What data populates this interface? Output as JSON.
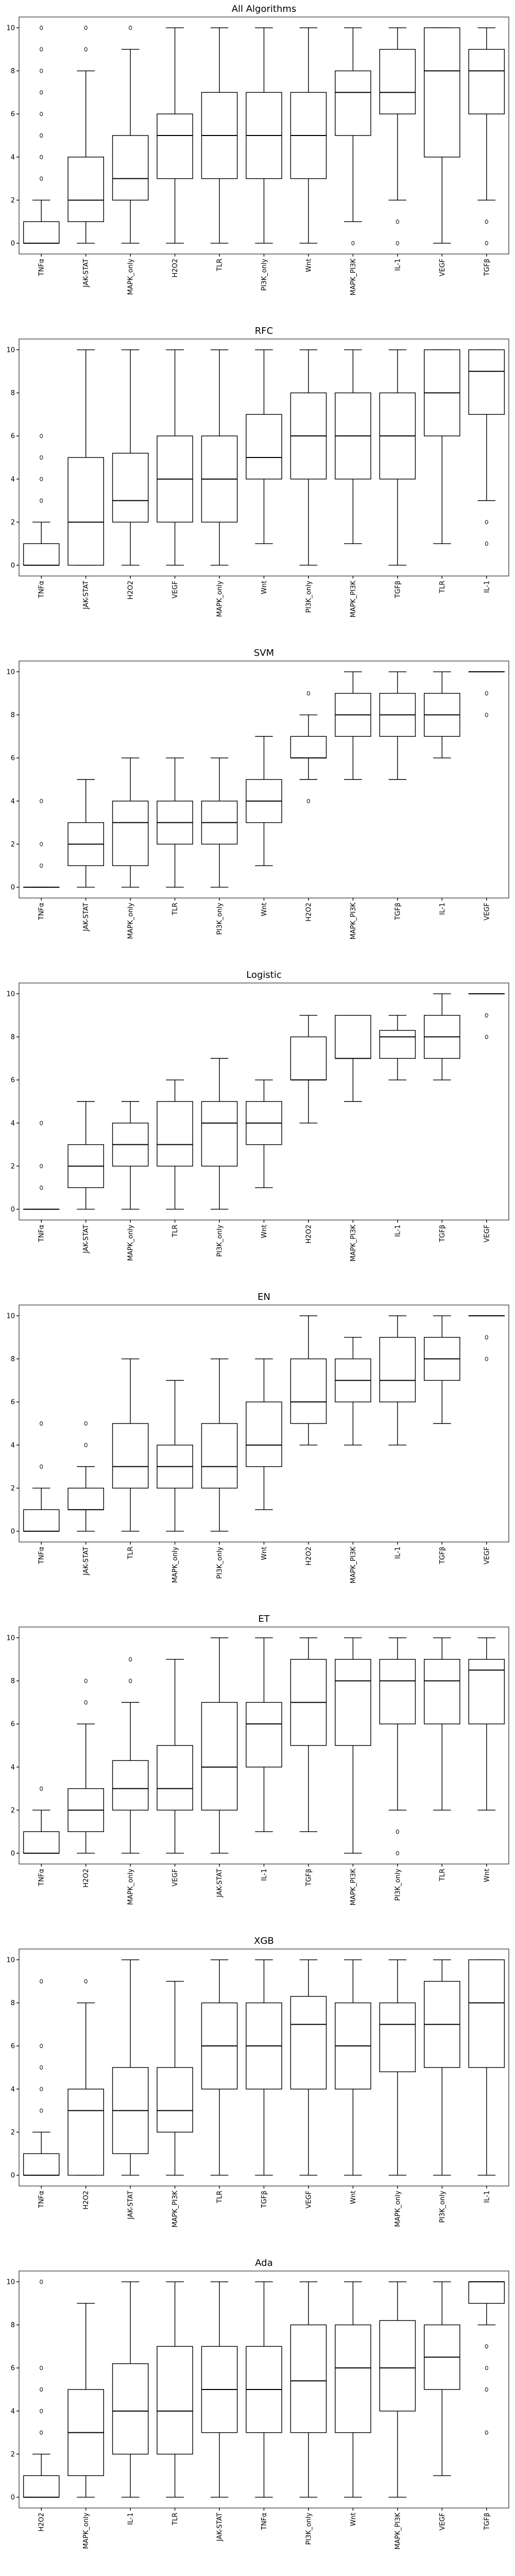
{
  "chart_data": [
    {
      "type": "box",
      "title": "All Algorithms",
      "ylim": [
        -0.5,
        10.5
      ],
      "yticks": [
        0,
        2,
        4,
        6,
        8,
        10
      ],
      "categories": [
        "TNFα",
        "JAK-STAT",
        "MAPK_only",
        "H2O2",
        "TLR",
        "PI3K_only",
        "Wnt",
        "MAPK_PI3K",
        "IL-1",
        "VEGF",
        "TGFβ"
      ],
      "boxes": [
        {
          "q1": 0,
          "median": 0,
          "q3": 1,
          "lo": 0,
          "hi": 2,
          "fliers": [
            3,
            4,
            5,
            6,
            7,
            8,
            9,
            10
          ]
        },
        {
          "q1": 1,
          "median": 2,
          "q3": 4,
          "lo": 0,
          "hi": 8,
          "fliers": [
            9,
            10
          ]
        },
        {
          "q1": 2,
          "median": 3,
          "q3": 5,
          "lo": 0,
          "hi": 9,
          "fliers": [
            10
          ]
        },
        {
          "q1": 3,
          "median": 5,
          "q3": 6,
          "lo": 0,
          "hi": 10,
          "fliers": []
        },
        {
          "q1": 3,
          "median": 5,
          "q3": 7,
          "lo": 0,
          "hi": 10,
          "fliers": []
        },
        {
          "q1": 3,
          "median": 5,
          "q3": 7,
          "lo": 0,
          "hi": 10,
          "fliers": []
        },
        {
          "q1": 3,
          "median": 5,
          "q3": 7,
          "lo": 0,
          "hi": 10,
          "fliers": []
        },
        {
          "q1": 5,
          "median": 7,
          "q3": 8,
          "lo": 1,
          "hi": 10,
          "fliers": [
            0
          ]
        },
        {
          "q1": 6,
          "median": 7,
          "q3": 9,
          "lo": 2,
          "hi": 10,
          "fliers": [
            0,
            1
          ]
        },
        {
          "q1": 4,
          "median": 8,
          "q3": 10,
          "lo": 0,
          "hi": 10,
          "fliers": []
        },
        {
          "q1": 6,
          "median": 8,
          "q3": 9,
          "lo": 2,
          "hi": 10,
          "fliers": [
            0,
            1
          ]
        }
      ]
    },
    {
      "type": "box",
      "title": "RFC",
      "ylim": [
        -0.5,
        10.5
      ],
      "yticks": [
        0,
        2,
        4,
        6,
        8,
        10
      ],
      "categories": [
        "TNFα",
        "JAK-STAT",
        "H2O2",
        "VEGF",
        "MAPK_only",
        "Wnt",
        "PI3K_only",
        "MAPK_PI3K",
        "TGFβ",
        "TLR",
        "IL-1"
      ],
      "boxes": [
        {
          "q1": 0,
          "median": 0,
          "q3": 1,
          "lo": 0,
          "hi": 2,
          "fliers": [
            3,
            4,
            5,
            6
          ]
        },
        {
          "q1": 0,
          "median": 2,
          "q3": 5,
          "lo": 0,
          "hi": 10,
          "fliers": []
        },
        {
          "q1": 2,
          "median": 3,
          "q3": 5.2,
          "lo": 0,
          "hi": 10,
          "fliers": []
        },
        {
          "q1": 2,
          "median": 4,
          "q3": 6,
          "lo": 0,
          "hi": 10,
          "fliers": []
        },
        {
          "q1": 2,
          "median": 4,
          "q3": 6,
          "lo": 0,
          "hi": 10,
          "fliers": []
        },
        {
          "q1": 4,
          "median": 5,
          "q3": 7,
          "lo": 1,
          "hi": 10,
          "fliers": []
        },
        {
          "q1": 4,
          "median": 6,
          "q3": 8,
          "lo": 0,
          "hi": 10,
          "fliers": []
        },
        {
          "q1": 4,
          "median": 6,
          "q3": 8,
          "lo": 1,
          "hi": 10,
          "fliers": []
        },
        {
          "q1": 4,
          "median": 6,
          "q3": 8,
          "lo": 0,
          "hi": 10,
          "fliers": []
        },
        {
          "q1": 6,
          "median": 8,
          "q3": 10,
          "lo": 1,
          "hi": 10,
          "fliers": []
        },
        {
          "q1": 7,
          "median": 9,
          "q3": 10,
          "lo": 3,
          "hi": 10,
          "fliers": [
            1,
            2
          ]
        }
      ]
    },
    {
      "type": "box",
      "title": "SVM",
      "ylim": [
        -0.5,
        10.5
      ],
      "yticks": [
        0,
        2,
        4,
        6,
        8,
        10
      ],
      "categories": [
        "TNFα",
        "JAK-STAT",
        "MAPK_only",
        "TLR",
        "PI3K_only",
        "Wnt",
        "H2O2",
        "MAPK_PI3K",
        "TGFβ",
        "IL-1",
        "VEGF"
      ],
      "boxes": [
        {
          "q1": 0,
          "median": 0,
          "q3": 0,
          "lo": 0,
          "hi": 0,
          "fliers": [
            1,
            2,
            4
          ]
        },
        {
          "q1": 1,
          "median": 2,
          "q3": 3,
          "lo": 0,
          "hi": 5,
          "fliers": []
        },
        {
          "q1": 1,
          "median": 3,
          "q3": 4,
          "lo": 0,
          "hi": 6,
          "fliers": []
        },
        {
          "q1": 2,
          "median": 3,
          "q3": 4,
          "lo": 0,
          "hi": 6,
          "fliers": []
        },
        {
          "q1": 2,
          "median": 3,
          "q3": 4,
          "lo": 0,
          "hi": 6,
          "fliers": []
        },
        {
          "q1": 3,
          "median": 4,
          "q3": 5,
          "lo": 1,
          "hi": 7,
          "fliers": []
        },
        {
          "q1": 6,
          "median": 6,
          "q3": 7,
          "lo": 5,
          "hi": 8,
          "fliers": [
            4,
            9
          ]
        },
        {
          "q1": 7,
          "median": 8,
          "q3": 9,
          "lo": 5,
          "hi": 10,
          "fliers": []
        },
        {
          "q1": 7,
          "median": 8,
          "q3": 9,
          "lo": 5,
          "hi": 10,
          "fliers": []
        },
        {
          "q1": 7,
          "median": 8,
          "q3": 9,
          "lo": 6,
          "hi": 10,
          "fliers": []
        },
        {
          "q1": 10,
          "median": 10,
          "q3": 10,
          "lo": 10,
          "hi": 10,
          "fliers": [
            8,
            9
          ]
        }
      ]
    },
    {
      "type": "box",
      "title": "Logistic",
      "ylim": [
        -0.5,
        10.5
      ],
      "yticks": [
        0,
        2,
        4,
        6,
        8,
        10
      ],
      "categories": [
        "TNFα",
        "JAK-STAT",
        "MAPK_only",
        "TLR",
        "PI3K_only",
        "Wnt",
        "H2O2",
        "MAPK_PI3K",
        "IL-1",
        "TGFβ",
        "VEGF"
      ],
      "boxes": [
        {
          "q1": 0,
          "median": 0,
          "q3": 0,
          "lo": 0,
          "hi": 0,
          "fliers": [
            1,
            2,
            4
          ]
        },
        {
          "q1": 1,
          "median": 2,
          "q3": 3,
          "lo": 0,
          "hi": 5,
          "fliers": []
        },
        {
          "q1": 2,
          "median": 3,
          "q3": 4,
          "lo": 0,
          "hi": 5,
          "fliers": []
        },
        {
          "q1": 2,
          "median": 3,
          "q3": 5,
          "lo": 0,
          "hi": 6,
          "fliers": []
        },
        {
          "q1": 2,
          "median": 4,
          "q3": 5,
          "lo": 0,
          "hi": 7,
          "fliers": []
        },
        {
          "q1": 3,
          "median": 4,
          "q3": 5,
          "lo": 1,
          "hi": 6,
          "fliers": []
        },
        {
          "q1": 6,
          "median": 6,
          "q3": 8,
          "lo": 4,
          "hi": 9,
          "fliers": []
        },
        {
          "q1": 7,
          "median": 7,
          "q3": 9,
          "lo": 5,
          "hi": 9,
          "fliers": []
        },
        {
          "q1": 7,
          "median": 8,
          "q3": 8.3,
          "lo": 6,
          "hi": 9,
          "fliers": []
        },
        {
          "q1": 7,
          "median": 8,
          "q3": 9,
          "lo": 6,
          "hi": 10,
          "fliers": []
        },
        {
          "q1": 10,
          "median": 10,
          "q3": 10,
          "lo": 10,
          "hi": 10,
          "fliers": [
            8,
            9
          ]
        }
      ]
    },
    {
      "type": "box",
      "title": "EN",
      "ylim": [
        -0.5,
        10.5
      ],
      "yticks": [
        0,
        2,
        4,
        6,
        8,
        10
      ],
      "categories": [
        "TNFα",
        "JAK-STAT",
        "TLR",
        "MAPK_only",
        "PI3K_only",
        "Wnt",
        "H2O2",
        "MAPK_PI3K",
        "IL-1",
        "TGFβ",
        "VEGF"
      ],
      "boxes": [
        {
          "q1": 0,
          "median": 0,
          "q3": 1,
          "lo": 0,
          "hi": 2,
          "fliers": [
            3,
            5
          ]
        },
        {
          "q1": 1,
          "median": 1,
          "q3": 2,
          "lo": 0,
          "hi": 3,
          "fliers": [
            4,
            5
          ]
        },
        {
          "q1": 2,
          "median": 3,
          "q3": 5,
          "lo": 0,
          "hi": 8,
          "fliers": []
        },
        {
          "q1": 2,
          "median": 3,
          "q3": 4,
          "lo": 0,
          "hi": 7,
          "fliers": []
        },
        {
          "q1": 2,
          "median": 3,
          "q3": 5,
          "lo": 0,
          "hi": 8,
          "fliers": []
        },
        {
          "q1": 3,
          "median": 4,
          "q3": 6,
          "lo": 1,
          "hi": 8,
          "fliers": []
        },
        {
          "q1": 5,
          "median": 6,
          "q3": 8,
          "lo": 4,
          "hi": 10,
          "fliers": []
        },
        {
          "q1": 6,
          "median": 7,
          "q3": 8,
          "lo": 4,
          "hi": 9,
          "fliers": []
        },
        {
          "q1": 6,
          "median": 7,
          "q3": 9,
          "lo": 4,
          "hi": 10,
          "fliers": []
        },
        {
          "q1": 7,
          "median": 8,
          "q3": 9,
          "lo": 5,
          "hi": 10,
          "fliers": []
        },
        {
          "q1": 10,
          "median": 10,
          "q3": 10,
          "lo": 10,
          "hi": 10,
          "fliers": [
            8,
            9
          ]
        }
      ]
    },
    {
      "type": "box",
      "title": "ET",
      "ylim": [
        -0.5,
        10.5
      ],
      "yticks": [
        0,
        2,
        4,
        6,
        8,
        10
      ],
      "categories": [
        "TNFα",
        "H2O2",
        "MAPK_only",
        "VEGF",
        "JAK-STAT",
        "IL-1",
        "TGFβ",
        "MAPK_PI3K",
        "PI3K_only",
        "TLR",
        "Wnt"
      ],
      "boxes": [
        {
          "q1": 0,
          "median": 0,
          "q3": 1,
          "lo": 0,
          "hi": 2,
          "fliers": [
            3
          ]
        },
        {
          "q1": 1,
          "median": 2,
          "q3": 3,
          "lo": 0,
          "hi": 6,
          "fliers": [
            7,
            8
          ]
        },
        {
          "q1": 2,
          "median": 3,
          "q3": 4.3,
          "lo": 0,
          "hi": 7,
          "fliers": [
            8,
            9
          ]
        },
        {
          "q1": 2,
          "median": 3,
          "q3": 5,
          "lo": 0,
          "hi": 9,
          "fliers": []
        },
        {
          "q1": 2,
          "median": 4,
          "q3": 7,
          "lo": 0,
          "hi": 10,
          "fliers": []
        },
        {
          "q1": 4,
          "median": 6,
          "q3": 7,
          "lo": 1,
          "hi": 10,
          "fliers": []
        },
        {
          "q1": 5,
          "median": 7,
          "q3": 9,
          "lo": 1,
          "hi": 10,
          "fliers": []
        },
        {
          "q1": 5,
          "median": 8,
          "q3": 9,
          "lo": 0,
          "hi": 10,
          "fliers": []
        },
        {
          "q1": 6,
          "median": 8,
          "q3": 9,
          "lo": 2,
          "hi": 10,
          "fliers": [
            0,
            1
          ]
        },
        {
          "q1": 6,
          "median": 8,
          "q3": 9,
          "lo": 2,
          "hi": 10,
          "fliers": []
        },
        {
          "q1": 6,
          "median": 8.5,
          "q3": 9,
          "lo": 2,
          "hi": 10,
          "fliers": []
        }
      ]
    },
    {
      "type": "box",
      "title": "XGB",
      "ylim": [
        -0.5,
        10.5
      ],
      "yticks": [
        0,
        2,
        4,
        6,
        8,
        10
      ],
      "categories": [
        "TNFα",
        "H2O2",
        "JAK-STAT",
        "MAPK_PI3K",
        "TLR",
        "TGFβ",
        "VEGF",
        "Wnt",
        "MAPK_only",
        "PI3K_only",
        "IL-1"
      ],
      "boxes": [
        {
          "q1": 0,
          "median": 0,
          "q3": 1,
          "lo": 0,
          "hi": 2,
          "fliers": [
            3,
            4,
            5,
            6,
            9
          ]
        },
        {
          "q1": 0,
          "median": 3,
          "q3": 4,
          "lo": 0,
          "hi": 8,
          "fliers": [
            9
          ]
        },
        {
          "q1": 1,
          "median": 3,
          "q3": 5,
          "lo": 0,
          "hi": 10,
          "fliers": []
        },
        {
          "q1": 2,
          "median": 3,
          "q3": 5,
          "lo": 0,
          "hi": 9,
          "fliers": []
        },
        {
          "q1": 4,
          "median": 6,
          "q3": 8,
          "lo": 0,
          "hi": 10,
          "fliers": []
        },
        {
          "q1": 4,
          "median": 6,
          "q3": 8,
          "lo": 0,
          "hi": 10,
          "fliers": []
        },
        {
          "q1": 4,
          "median": 7,
          "q3": 8.3,
          "lo": 0,
          "hi": 10,
          "fliers": []
        },
        {
          "q1": 4,
          "median": 6,
          "q3": 8,
          "lo": 0,
          "hi": 10,
          "fliers": []
        },
        {
          "q1": 4.8,
          "median": 7,
          "q3": 8,
          "lo": 0,
          "hi": 10,
          "fliers": []
        },
        {
          "q1": 5,
          "median": 7,
          "q3": 9,
          "lo": 0,
          "hi": 10,
          "fliers": []
        },
        {
          "q1": 5,
          "median": 8,
          "q3": 10,
          "lo": 0,
          "hi": 10,
          "fliers": []
        }
      ]
    },
    {
      "type": "box",
      "title": "Ada",
      "ylim": [
        -0.5,
        10.5
      ],
      "yticks": [
        0,
        2,
        4,
        6,
        8,
        10
      ],
      "categories": [
        "H2O2",
        "MAPK_only",
        "IL-1",
        "TLR",
        "JAK-STAT",
        "TNFα",
        "PI3K_only",
        "Wnt",
        "MAPK_PI3K",
        "VEGF",
        "TGFβ"
      ],
      "boxes": [
        {
          "q1": 0,
          "median": 0,
          "q3": 1,
          "lo": 0,
          "hi": 2,
          "fliers": [
            3,
            4,
            5,
            6,
            10
          ]
        },
        {
          "q1": 1,
          "median": 3,
          "q3": 5,
          "lo": 0,
          "hi": 9,
          "fliers": []
        },
        {
          "q1": 2,
          "median": 4,
          "q3": 6.2,
          "lo": 0,
          "hi": 10,
          "fliers": []
        },
        {
          "q1": 2,
          "median": 4,
          "q3": 7,
          "lo": 0,
          "hi": 10,
          "fliers": []
        },
        {
          "q1": 3,
          "median": 5,
          "q3": 7,
          "lo": 0,
          "hi": 10,
          "fliers": []
        },
        {
          "q1": 3,
          "median": 5,
          "q3": 7,
          "lo": 0,
          "hi": 10,
          "fliers": []
        },
        {
          "q1": 3,
          "median": 5.4,
          "q3": 8,
          "lo": 0,
          "hi": 10,
          "fliers": []
        },
        {
          "q1": 3,
          "median": 6,
          "q3": 8,
          "lo": 0,
          "hi": 10,
          "fliers": []
        },
        {
          "q1": 4,
          "median": 6,
          "q3": 8.2,
          "lo": 0,
          "hi": 10,
          "fliers": []
        },
        {
          "q1": 5,
          "median": 6.5,
          "q3": 8,
          "lo": 1,
          "hi": 10,
          "fliers": []
        },
        {
          "q1": 9,
          "median": 10,
          "q3": 10,
          "lo": 8,
          "hi": 10,
          "fliers": [
            3,
            5,
            6,
            7
          ]
        }
      ]
    }
  ]
}
